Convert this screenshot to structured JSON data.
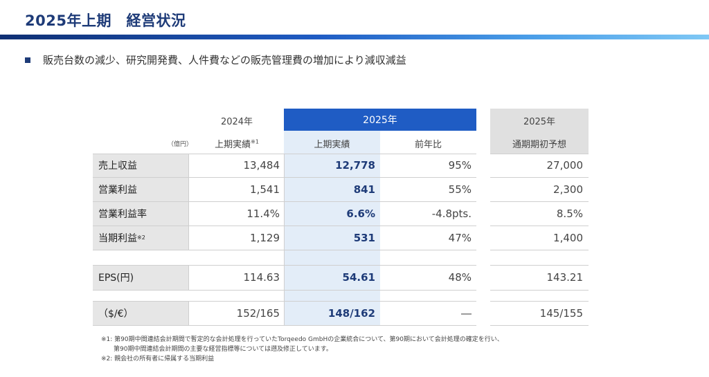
{
  "page": {
    "title": "2025年上期　経営状況",
    "bullet": "販売台数の減少、研究開発費、人件費などの販売管理費の増加により減収減益"
  },
  "table": {
    "unit": "（億円）",
    "header_2024": "2024年",
    "header_2025": "2025年",
    "header_forecast_year": "2025年",
    "sub_2024": "上期実績",
    "sub_2024_note": "※1",
    "sub_2025": "上期実績",
    "sub_yoy": "前年比",
    "sub_forecast": "通期期初予想",
    "rows": [
      {
        "label": "売上収益",
        "note": "",
        "v2024": "13,484",
        "v2025": "12,778",
        "yoy": "95%",
        "forecast": "27,000"
      },
      {
        "label": "営業利益",
        "note": "",
        "v2024": "1,541",
        "v2025": "841",
        "yoy": "55%",
        "forecast": "2,300"
      },
      {
        "label": "営業利益率",
        "note": "",
        "v2024": "11.4%",
        "v2025": "6.6%",
        "yoy": "-4.8pts.",
        "forecast": "8.5%"
      },
      {
        "label": "当期利益",
        "note": "※2",
        "v2024": "1,129",
        "v2025": "531",
        "yoy": "47%",
        "forecast": "1,400"
      },
      {
        "label": "EPS(円)",
        "note": "",
        "v2024": "114.63",
        "v2025": "54.61",
        "yoy": "48%",
        "forecast": "143.21"
      },
      {
        "label": "（$/€）",
        "note": "",
        "v2024": "152/165",
        "v2025": "148/162",
        "yoy": "―",
        "forecast": "145/155"
      }
    ]
  },
  "footnotes": [
    "※1: 第90期中間連結会計期間で暫定的な会計処理を行っていたTorqeedo GmbHの企業統合について、第90期において会計処理の確定を行い、",
    "　　第90期中間連結会計期間の主要な経営指標等については遡及修正しています。",
    "※2: 親会社の所有者に帰属する当期利益"
  ]
}
